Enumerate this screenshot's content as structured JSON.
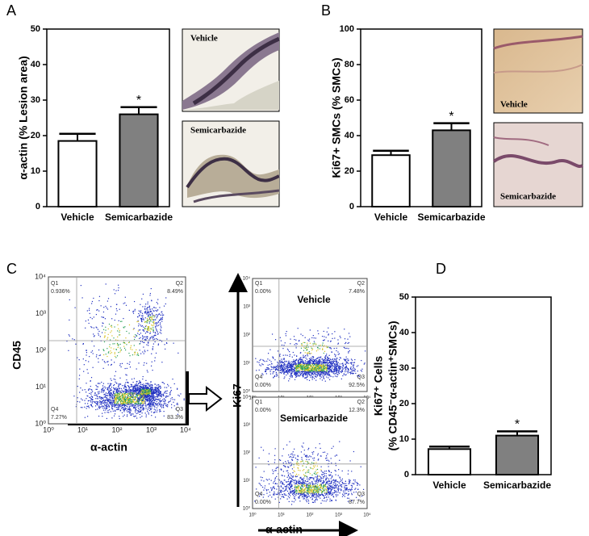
{
  "chart_data": [
    {
      "type": "bar",
      "panel": "A",
      "ylabel": "α-actin (% Lesion area)",
      "categories": [
        "Vehicle",
        "Semicarbazide"
      ],
      "values": [
        18.5,
        26
      ],
      "errors": [
        2,
        2
      ],
      "colors": [
        "#ffffff",
        "#808080"
      ],
      "annotations": [
        null,
        "*"
      ],
      "ylim": [
        0,
        50
      ],
      "yticks": [
        0,
        10,
        20,
        30,
        40,
        50
      ]
    },
    {
      "type": "bar",
      "panel": "B",
      "ylabel": "Ki67+ SMCs (% SMCs)",
      "categories": [
        "Vehicle",
        "Semicarbazide"
      ],
      "values": [
        29,
        43
      ],
      "errors": [
        2.5,
        4
      ],
      "colors": [
        "#ffffff",
        "#808080"
      ],
      "annotations": [
        null,
        "*"
      ],
      "ylim": [
        0,
        100
      ],
      "yticks": [
        0,
        20,
        40,
        60,
        80,
        100
      ]
    },
    {
      "type": "bar",
      "panel": "D",
      "ylabel": [
        "Ki67⁺ Cells",
        "(% CD45⁻α-actin⁺SMCs)"
      ],
      "categories": [
        "Vehicle",
        "Semicarbazide"
      ],
      "values": [
        7.2,
        11
      ],
      "errors": [
        0.7,
        1.2
      ],
      "colors": [
        "#ffffff",
        "#808080"
      ],
      "annotations": [
        null,
        "*"
      ],
      "ylim": [
        0,
        50
      ],
      "yticks": [
        0,
        10,
        20,
        30,
        40,
        50
      ]
    }
  ],
  "micrographs": [
    {
      "label": "Vehicle"
    },
    {
      "label": "Semicarbazide"
    },
    {
      "label": "Vehicle"
    },
    {
      "label": "Semicarbazide"
    }
  ],
  "flow": {
    "panel": "C",
    "ticks": [
      "10⁰",
      "10¹",
      "10²",
      "10³",
      "10⁴"
    ],
    "main": {
      "x_label": "α-actin",
      "y_label": "CD45",
      "quadrants": [
        [
          "Q1",
          "0.936%"
        ],
        [
          "Q2",
          "8.49%"
        ],
        [
          "Q3",
          "83.3%"
        ],
        [
          "Q4",
          "7.27%"
        ]
      ]
    },
    "subplots": [
      {
        "title": "Vehicle",
        "quadrants": [
          [
            "Q1",
            "0.00%"
          ],
          [
            "Q2",
            "7.48%"
          ],
          [
            "Q3",
            "92.5%"
          ],
          [
            "Q4",
            "0.00%"
          ]
        ]
      },
      {
        "title": "Semicarbazide",
        "quadrants": [
          [
            "Q1",
            "0.00%"
          ],
          [
            "Q2",
            "12.3%"
          ],
          [
            "Q3",
            "87.7%"
          ],
          [
            "Q4",
            "0.00%"
          ]
        ]
      }
    ],
    "y_label": "Ki67",
    "x_label": "α-actin"
  }
}
